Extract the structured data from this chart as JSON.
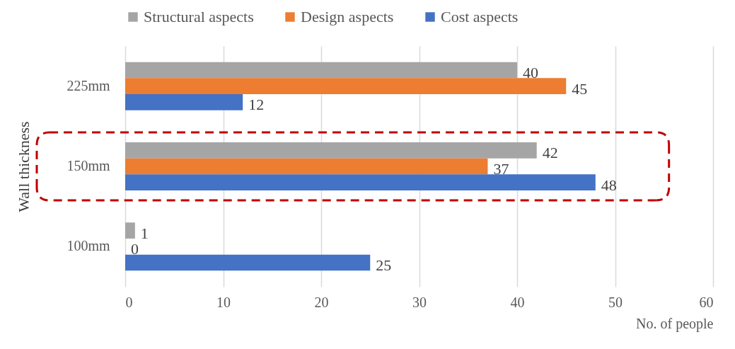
{
  "chart_data": {
    "type": "bar",
    "orientation": "horizontal",
    "xlabel": "No. of people",
    "ylabel": "Wall thickness",
    "categories": [
      "225mm",
      "150mm",
      "100mm"
    ],
    "series": [
      {
        "name": "Structural aspects",
        "color": "#a5a5a5",
        "values": [
          40,
          42,
          1
        ]
      },
      {
        "name": "Design aspects",
        "color": "#ed7d31",
        "values": [
          45,
          37,
          0
        ]
      },
      {
        "name": "Cost aspects",
        "color": "#4472c4",
        "values": [
          12,
          48,
          25
        ]
      }
    ],
    "xlim": [
      0,
      60
    ],
    "xticks": [
      0,
      10,
      20,
      30,
      40,
      50,
      60
    ],
    "grid": "x",
    "legend": "top",
    "data_labels": true
  }
}
